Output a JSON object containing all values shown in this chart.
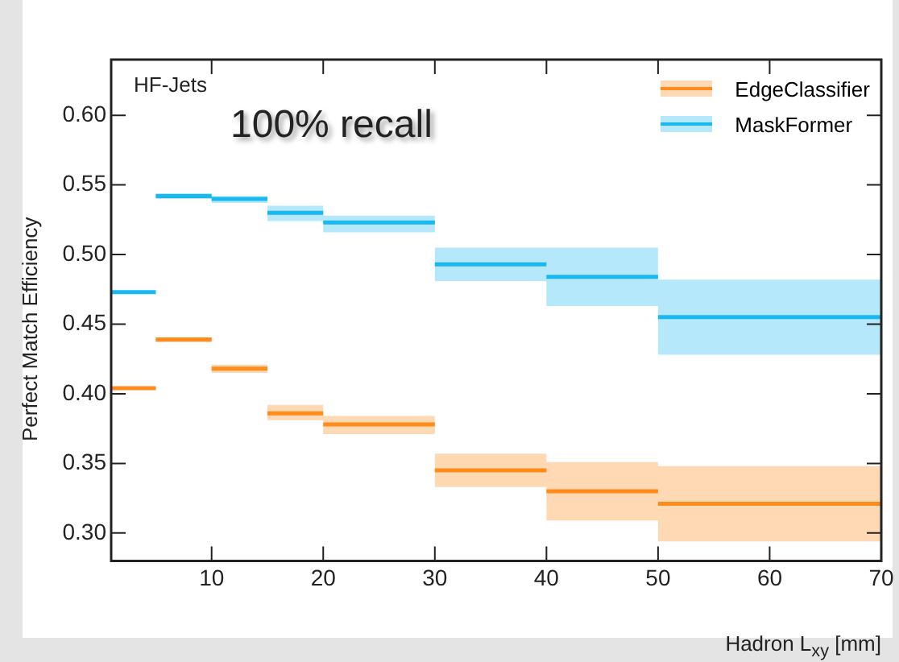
{
  "chart_data": {
    "type": "line",
    "xlabel": "Hadron L$_{xy}$ [mm]",
    "ylabel": "Perfect Match Efficiency",
    "x": [
      1,
      5,
      null,
      5,
      10,
      null,
      10,
      15,
      null,
      15,
      20,
      null,
      20,
      30,
      null,
      30,
      40,
      null,
      40,
      50,
      null,
      50,
      70
    ],
    "xlim": [
      1,
      70
    ],
    "xticks": [
      10,
      20,
      30,
      40,
      50,
      60,
      70
    ],
    "ylim": [
      0.28,
      0.64
    ],
    "yticks": [
      {
        "value": 0.3,
        "label": "0.30"
      },
      {
        "value": 0.35,
        "label": "0.35"
      },
      {
        "value": 0.4,
        "label": "0.40"
      },
      {
        "value": 0.45,
        "label": "0.45"
      },
      {
        "value": 0.5,
        "label": "0.50"
      },
      {
        "value": 0.55,
        "label": "0.55"
      },
      {
        "value": 0.6,
        "label": "0.60"
      }
    ],
    "series": [
      {
        "name": "EdgeClassifier",
        "color": "#ff8c1a",
        "values": [
          0.404,
          0.404,
          null,
          0.439,
          0.439,
          null,
          0.418,
          0.418,
          null,
          0.386,
          0.386,
          null,
          0.378,
          0.378,
          null,
          0.345,
          0.345,
          null,
          0.33,
          0.33,
          null,
          0.321,
          0.321
        ],
        "lower": [
          0.403,
          0.403,
          null,
          0.437,
          0.437,
          null,
          0.415,
          0.415,
          null,
          0.381,
          0.381,
          null,
          0.371,
          0.371,
          null,
          0.333,
          0.333,
          null,
          0.309,
          0.309,
          null,
          0.294,
          0.294
        ],
        "upper": [
          0.405,
          0.405,
          null,
          0.44,
          0.44,
          null,
          0.421,
          0.421,
          null,
          0.392,
          0.392,
          null,
          0.384,
          0.384,
          null,
          0.357,
          0.357,
          null,
          0.351,
          0.351,
          null,
          0.348,
          0.348
        ]
      },
      {
        "name": "MaskFormer",
        "color": "#1ab8f0",
        "values": [
          0.473,
          0.473,
          null,
          0.542,
          0.542,
          null,
          0.54,
          0.54,
          null,
          0.53,
          0.53,
          null,
          0.523,
          0.523,
          null,
          0.493,
          0.493,
          null,
          0.484,
          0.484,
          null,
          0.455,
          0.455
        ],
        "lower": [
          0.472,
          0.472,
          null,
          0.54,
          0.54,
          null,
          0.537,
          0.537,
          null,
          0.524,
          0.524,
          null,
          0.516,
          0.516,
          null,
          0.481,
          0.481,
          null,
          0.463,
          0.463,
          null,
          0.428,
          0.428
        ],
        "upper": [
          0.474,
          0.474,
          null,
          0.544,
          0.544,
          null,
          0.542,
          0.542,
          null,
          0.535,
          0.535,
          null,
          0.528,
          0.528,
          null,
          0.505,
          0.505,
          null,
          0.505,
          0.505,
          null,
          0.482,
          0.482
        ]
      }
    ],
    "annotations": [
      "HF-Jets",
      "100% recall"
    ],
    "legend": "top right",
    "marker": "none"
  }
}
